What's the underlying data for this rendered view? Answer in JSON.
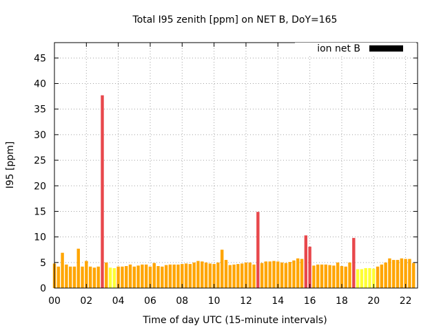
{
  "chart_data": {
    "type": "bar",
    "title": "Total I95 zenith [ppm] on NET B, DoY=165",
    "xlabel": "Time of day UTC (15-minute intervals)",
    "ylabel": "I95 [ppm]",
    "ylim": [
      0,
      48
    ],
    "xlim": [
      0,
      22.75
    ],
    "x_tick_values": [
      0,
      2,
      4,
      6,
      8,
      10,
      12,
      14,
      16,
      18,
      20,
      22
    ],
    "x_tick_labels": [
      "00",
      "02",
      "04",
      "06",
      "08",
      "10",
      "12",
      "14",
      "16",
      "18",
      "20",
      "22"
    ],
    "y_tick_values": [
      0,
      5,
      10,
      15,
      20,
      25,
      30,
      35,
      40,
      45
    ],
    "y_tick_labels": [
      "0",
      "5",
      "10",
      "15",
      "20",
      "25",
      "30",
      "35",
      "40",
      "45"
    ],
    "grid": true,
    "legend": {
      "label": "ion net B",
      "color": "#000000",
      "placement": "top-right"
    },
    "colors": {
      "high": "#e8474b",
      "normal": "#ffa500",
      "low": "#ffff33"
    },
    "interval_hours": 0.25,
    "values": [
      4.8,
      4.2,
      6.9,
      4.6,
      4.2,
      4.2,
      7.7,
      4.2,
      5.3,
      4.2,
      4.0,
      4.2,
      37.7,
      5.0,
      4.0,
      3.9,
      4.2,
      4.2,
      4.3,
      4.6,
      4.2,
      4.4,
      4.6,
      4.6,
      4.2,
      4.9,
      4.3,
      4.2,
      4.5,
      4.6,
      4.6,
      4.6,
      4.7,
      4.8,
      4.7,
      5.0,
      5.3,
      5.2,
      5.0,
      4.8,
      4.7,
      5.0,
      7.5,
      5.5,
      4.5,
      4.6,
      4.7,
      4.8,
      5.0,
      5.0,
      4.6,
      14.9,
      4.9,
      5.2,
      5.2,
      5.3,
      5.2,
      5.0,
      4.9,
      5.1,
      5.4,
      5.8,
      5.7,
      10.3,
      8.1,
      4.4,
      4.6,
      4.6,
      4.6,
      4.5,
      4.4,
      5.0,
      4.3,
      4.2,
      5.0,
      9.8,
      3.7,
      3.7,
      3.9,
      3.9,
      3.8,
      4.2,
      4.6,
      5.0,
      5.8,
      5.5,
      5.5,
      5.8,
      5.7,
      5.7,
      4.9
    ],
    "categories_colors": [
      "normal",
      "normal",
      "normal",
      "normal",
      "normal",
      "normal",
      "normal",
      "normal",
      "normal",
      "normal",
      "normal",
      "normal",
      "high",
      "normal",
      "low",
      "low",
      "normal",
      "normal",
      "normal",
      "normal",
      "normal",
      "normal",
      "normal",
      "normal",
      "normal",
      "normal",
      "normal",
      "normal",
      "normal",
      "normal",
      "normal",
      "normal",
      "normal",
      "normal",
      "normal",
      "normal",
      "normal",
      "normal",
      "normal",
      "normal",
      "normal",
      "normal",
      "normal",
      "normal",
      "normal",
      "normal",
      "normal",
      "normal",
      "normal",
      "normal",
      "normal",
      "high",
      "normal",
      "normal",
      "normal",
      "normal",
      "normal",
      "normal",
      "normal",
      "normal",
      "normal",
      "normal",
      "normal",
      "high",
      "high",
      "normal",
      "normal",
      "normal",
      "normal",
      "normal",
      "normal",
      "normal",
      "normal",
      "normal",
      "normal",
      "high",
      "low",
      "low",
      "low",
      "low",
      "low",
      "normal",
      "normal",
      "normal",
      "normal",
      "normal",
      "normal",
      "normal",
      "normal",
      "normal",
      "normal"
    ]
  }
}
